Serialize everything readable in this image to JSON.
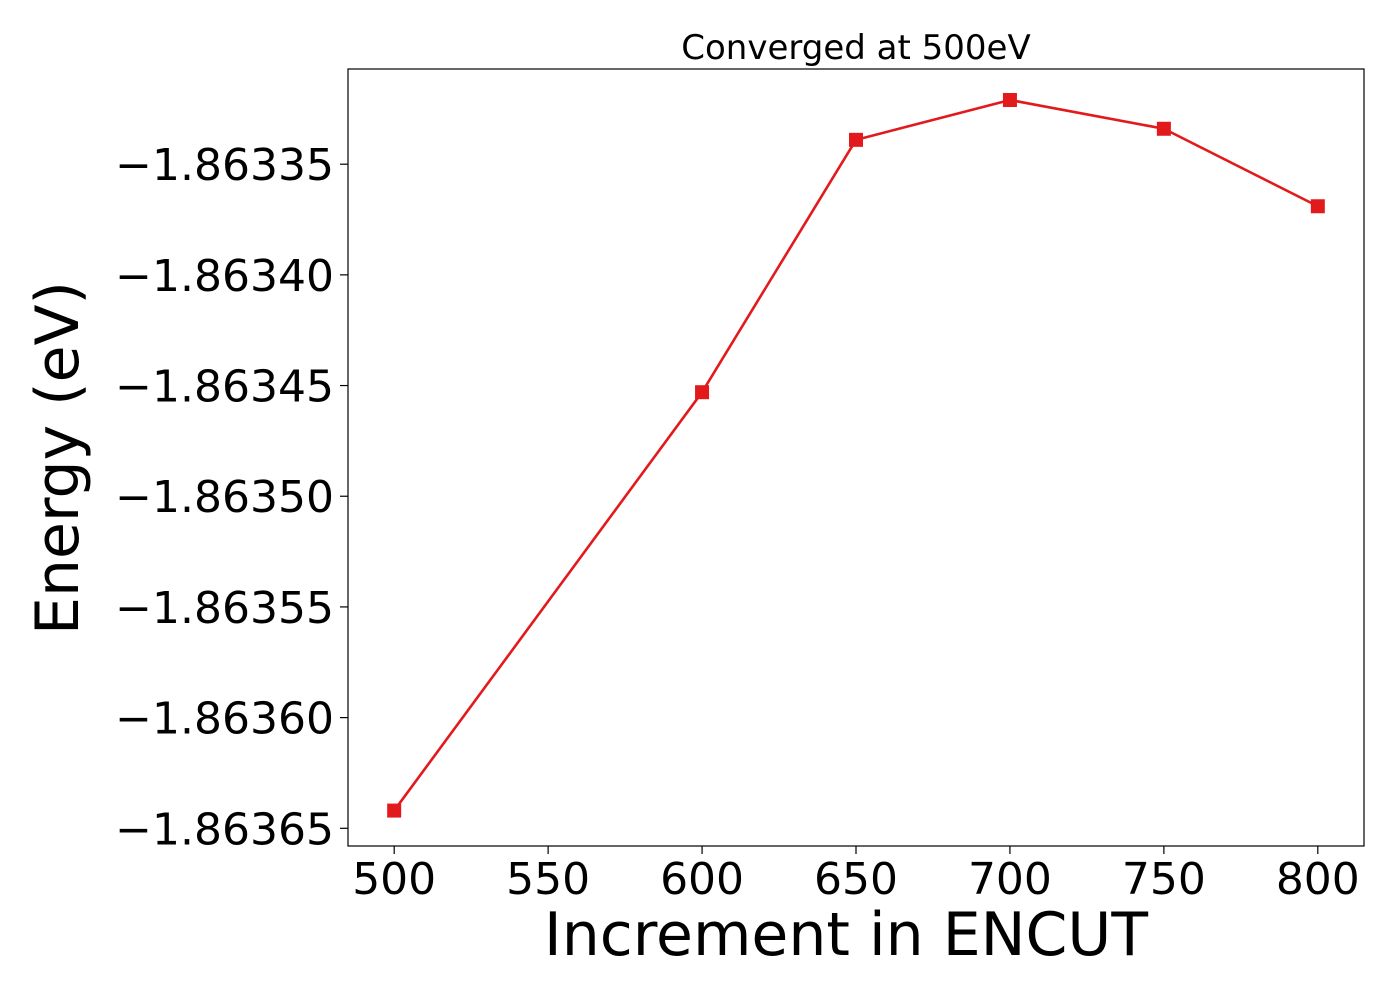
{
  "chart_data": {
    "type": "line",
    "title": "Converged at 500eV",
    "xlabel": "Increment in ENCUT",
    "ylabel": "Energy (eV)",
    "x": [
      500,
      600,
      650,
      700,
      750,
      800
    ],
    "series": [
      {
        "values": [
          -1.863642,
          -1.863453,
          -1.863339,
          -1.863321,
          -1.863334,
          -1.863369
        ],
        "color": "#e31a1c",
        "marker": "square"
      }
    ],
    "xticks": [
      500,
      550,
      600,
      650,
      700,
      750,
      800
    ],
    "xtick_labels": [
      "500",
      "550",
      "600",
      "650",
      "700",
      "750",
      "800"
    ],
    "yticks": [
      -1.86365,
      -1.8636,
      -1.86355,
      -1.8635,
      -1.86345,
      -1.8634,
      -1.86335
    ],
    "ytick_labels": [
      "−1.86365",
      "−1.86360",
      "−1.86355",
      "−1.86350",
      "−1.86345",
      "−1.86340",
      "−1.86335"
    ],
    "xlim": [
      485,
      815
    ],
    "ylim": [
      -1.863658,
      -1.863307
    ],
    "grid": false,
    "legend": false
  }
}
